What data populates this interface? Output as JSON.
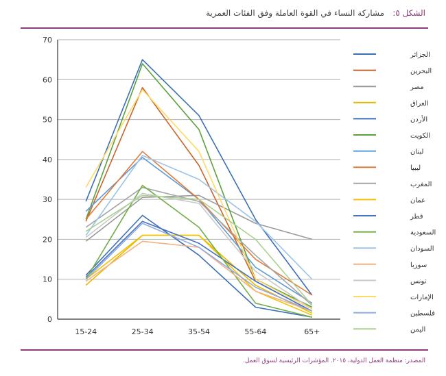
{
  "figure_label": "الشكل ٥:",
  "figure_title": "مشاركة النساء في القوة العاملة وفق الفئات العمرية",
  "source": "المصدر: منظمة العمل الدولية، ٢٠١٥. المؤشرات الرئيسية لسوق العمل.",
  "chart_data": {
    "type": "line",
    "categories": [
      "15-24",
      "25-34",
      "35-54",
      "55-64",
      "65+"
    ],
    "ylim": [
      0,
      70
    ],
    "yticks": [
      0,
      10,
      20,
      30,
      40,
      50,
      60,
      70
    ],
    "xlabel": "",
    "ylabel": "",
    "grid": true,
    "legend_position": "right",
    "series": [
      {
        "name": "الجزائر",
        "color": "#3b6fb6",
        "values": [
          29.5,
          65.0,
          51.0,
          25.0,
          6.0
        ]
      },
      {
        "name": "البحرين",
        "color": "#c8642a",
        "values": [
          24.5,
          58.0,
          38.5,
          9.5,
          2.0
        ]
      },
      {
        "name": "مصر",
        "color": "#9a9a9a",
        "values": [
          19.5,
          30.5,
          31.0,
          24.0,
          20.0
        ]
      },
      {
        "name": "العراق",
        "color": "#e8b800",
        "values": [
          8.5,
          21.0,
          21.0,
          8.5,
          1.5
        ]
      },
      {
        "name": "الأردن",
        "color": "#3b6fb6",
        "values": [
          11.0,
          26.0,
          16.0,
          3.0,
          0.5
        ]
      },
      {
        "name": "الكويت",
        "color": "#5ba03c",
        "values": [
          25.0,
          64.0,
          47.5,
          10.0,
          3.0
        ]
      },
      {
        "name": "لبنان",
        "color": "#5b9bd5",
        "values": [
          27.0,
          40.5,
          30.0,
          13.0,
          4.0
        ]
      },
      {
        "name": "ليبيا",
        "color": "#e07b39",
        "values": [
          25.0,
          42.0,
          30.0,
          15.0,
          6.0
        ]
      },
      {
        "name": "المغرب",
        "color": "#a5a5a5",
        "values": [
          23.0,
          33.0,
          29.5,
          16.0,
          3.5
        ]
      },
      {
        "name": "عمان",
        "color": "#f2c200",
        "values": [
          10.0,
          21.0,
          21.0,
          7.0,
          1.0
        ]
      },
      {
        "name": "قطر",
        "color": "#4472c4",
        "values": [
          10.5,
          24.5,
          19.0,
          9.5,
          2.0
        ]
      },
      {
        "name": "السعودية",
        "color": "#70ad47",
        "values": [
          10.0,
          33.5,
          23.0,
          4.0,
          0.5
        ]
      },
      {
        "name": "السودان",
        "color": "#9dc3e6",
        "values": [
          21.0,
          41.0,
          35.0,
          24.5,
          10.0
        ]
      },
      {
        "name": "سوريا",
        "color": "#f4b183",
        "values": [
          9.5,
          19.5,
          18.0,
          7.0,
          2.0
        ]
      },
      {
        "name": "تونس",
        "color": "#c9c9c9",
        "values": [
          20.5,
          31.5,
          29.0,
          12.0,
          2.5
        ]
      },
      {
        "name": "الإمارات",
        "color": "#ffd966",
        "values": [
          33.0,
          57.5,
          42.0,
          10.0,
          2.5
        ]
      },
      {
        "name": "فلسطين",
        "color": "#8faadc",
        "values": [
          10.0,
          24.0,
          18.0,
          8.0,
          2.0
        ]
      },
      {
        "name": "اليمن",
        "color": "#a9d18e",
        "values": [
          22.0,
          31.0,
          30.0,
          20.0,
          3.5
        ]
      }
    ]
  }
}
